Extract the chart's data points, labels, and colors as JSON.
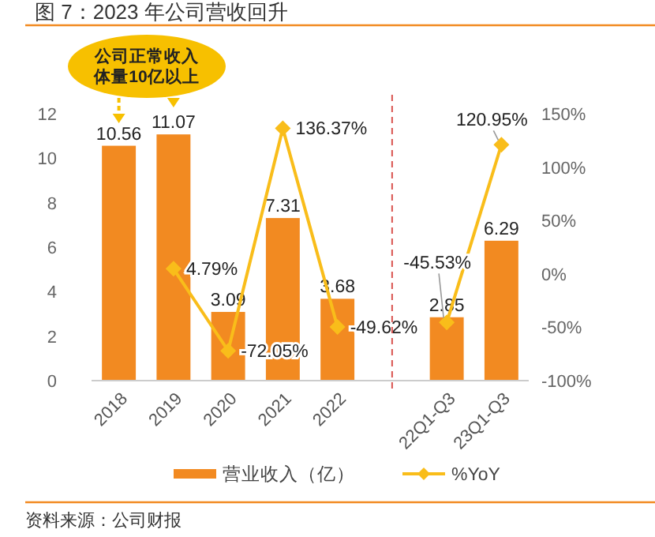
{
  "chart_data": {
    "type": "bar",
    "title": "图 7：2023 年公司营收回升",
    "categories": [
      "2018",
      "2019",
      "2020",
      "2021",
      "2022",
      null,
      "22Q1-Q3",
      "23Q1-Q3"
    ],
    "series": [
      {
        "name": "营业收入（亿）",
        "color": "#f28a21",
        "values": [
          10.56,
          11.07,
          3.09,
          7.31,
          3.68,
          null,
          2.85,
          6.29
        ],
        "value_labels": [
          "10.56",
          "11.07",
          "3.09",
          "7.31",
          "3.68",
          null,
          "2.85",
          "6.29"
        ]
      },
      {
        "name": "%YoY",
        "type": "line",
        "axis": "y2",
        "color": "#f9bd1a",
        "marker": "diamond",
        "values": [
          null,
          4.79,
          -72.05,
          136.37,
          -49.62,
          null,
          -45.53,
          120.95
        ],
        "value_labels": [
          null,
          "4.79%",
          "-72.05%",
          "136.37%",
          "-49.62%",
          null,
          "-45.53%",
          "120.95%"
        ]
      }
    ],
    "ylim": [
      0,
      12
    ],
    "yticks": [
      0,
      2,
      4,
      6,
      8,
      10,
      12
    ],
    "y2lim": [
      -100,
      150
    ],
    "y2ticks": [
      {
        "value": -100,
        "label": "-100%"
      },
      {
        "value": -50,
        "label": "-50%"
      },
      {
        "value": 0,
        "label": "0%"
      },
      {
        "value": 50,
        "label": "50%"
      },
      {
        "value": 100,
        "label": "100%"
      },
      {
        "value": 150,
        "label": "150%"
      }
    ],
    "annotations": [
      "公司正常收入体量10亿以上",
      "资料来源：公司财报"
    ],
    "grid": false,
    "legend": "bottom"
  }
}
